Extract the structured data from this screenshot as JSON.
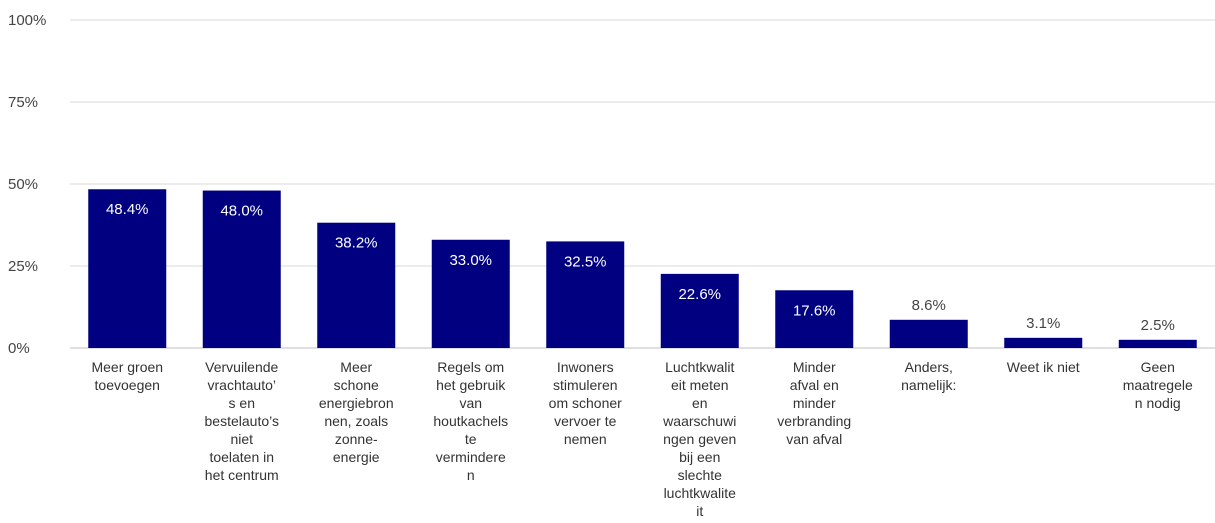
{
  "chart_data": {
    "type": "bar",
    "title": "",
    "xlabel": "",
    "ylabel": "",
    "ylim": [
      0,
      100
    ],
    "y_ticks": [
      "0%",
      "25%",
      "50%",
      "75%",
      "100%"
    ],
    "y_tick_values": [
      0,
      25,
      50,
      75,
      100
    ],
    "bar_color": "#000080",
    "grid": true,
    "legend": "none",
    "categories": [
      [
        "Meer groen",
        "toevoegen"
      ],
      [
        "Vervuilende",
        "vrachtauto’",
        "s en",
        "bestelauto’s",
        "niet",
        "toelaten in",
        "het centrum"
      ],
      [
        "Meer",
        "schone",
        "energiebron",
        "nen, zoals",
        "zonne-",
        "energie"
      ],
      [
        "Regels om",
        "het gebruik",
        "van",
        "houtkachels",
        "te",
        "verminderе",
        "n"
      ],
      [
        "Inwoners",
        "stimuleren",
        "om schoner",
        "vervoer te",
        "nemen"
      ],
      [
        "Luchtkwalit",
        "eit meten",
        "en",
        "waarschuwi",
        "ngen geven",
        "bij een",
        "slechte",
        "luchtkwalite",
        "it"
      ],
      [
        "Minder",
        "afval en",
        "minder",
        "verbranding",
        "van afval"
      ],
      [
        "Anders,",
        "namelijk:"
      ],
      [
        "Weet ik niet"
      ],
      [
        "Geen",
        "maatregele",
        "n nodig"
      ]
    ],
    "values": [
      48.4,
      48.0,
      38.2,
      33.0,
      32.5,
      22.6,
      17.6,
      8.6,
      3.1,
      2.5
    ],
    "value_labels": [
      "48.4%",
      "48.0%",
      "38.2%",
      "33.0%",
      "32.5%",
      "22.6%",
      "17.6%",
      "8.6%",
      "3.1%",
      "2.5%"
    ]
  }
}
